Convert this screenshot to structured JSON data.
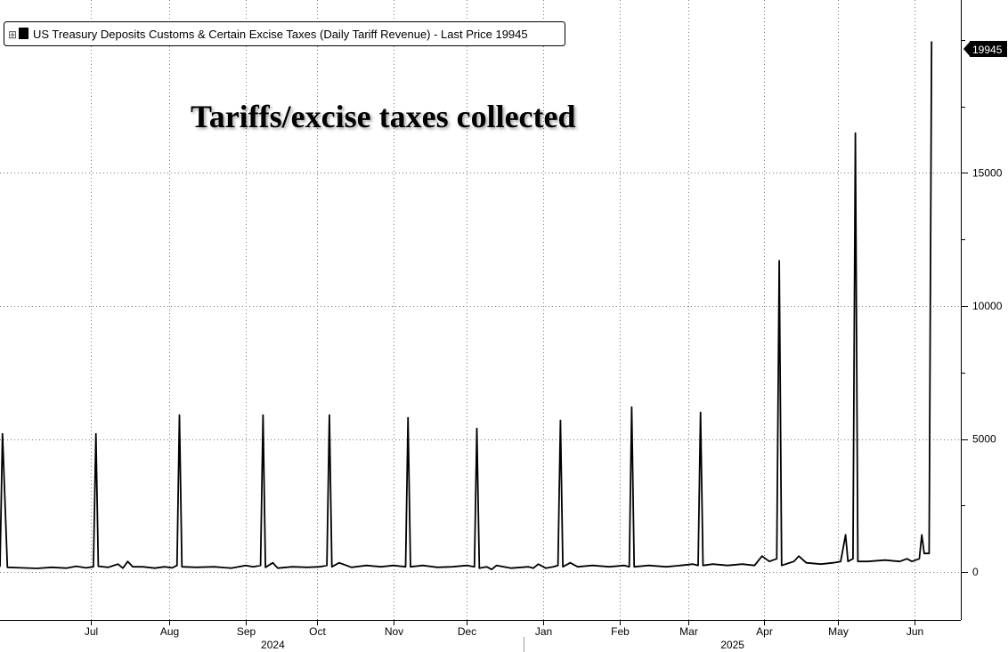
{
  "chart_data": {
    "type": "line",
    "title": "Tariffs/excise taxes collected",
    "legend": {
      "expand_glyph": "⊞",
      "text": "US Treasury Deposits Customs & Certain Excise Taxes (Daily Tariff Revenue) - Last Price 19945"
    },
    "last_value_label": "19945",
    "ylim": [
      -1800,
      21500
    ],
    "yticks": [
      0,
      5000,
      10000,
      15000
    ],
    "ytick_labels": [
      "0",
      "5000",
      "10000",
      "15000"
    ],
    "x_range": [
      "2024-06-01",
      "2025-06-20"
    ],
    "month_ticks": [
      {
        "label": "Jul",
        "date": "2024-07-08"
      },
      {
        "label": "Aug",
        "date": "2024-08-09"
      },
      {
        "label": "Sep",
        "date": "2024-09-09"
      },
      {
        "label": "Oct",
        "date": "2024-10-08"
      },
      {
        "label": "Nov",
        "date": "2024-11-08"
      },
      {
        "label": "Dec",
        "date": "2024-12-08"
      },
      {
        "label": "Jan",
        "date": "2025-01-08"
      },
      {
        "label": "Feb",
        "date": "2025-02-08"
      },
      {
        "label": "Mar",
        "date": "2025-03-08"
      },
      {
        "label": "Apr",
        "date": "2025-04-08"
      },
      {
        "label": "May",
        "date": "2025-05-08"
      },
      {
        "label": "Jun",
        "date": "2025-06-08"
      }
    ],
    "year_labels": [
      {
        "label": "2024",
        "date": "2024-09-20"
      },
      {
        "label": "2025",
        "date": "2025-03-26"
      }
    ],
    "grid": true,
    "legend_position": "top-left",
    "line_color": "#000000",
    "series": [
      {
        "points": [
          [
            "2024-06-01",
            200
          ],
          [
            "2024-06-02",
            5200
          ],
          [
            "2024-06-04",
            180
          ],
          [
            "2024-06-10",
            160
          ],
          [
            "2024-06-16",
            140
          ],
          [
            "2024-06-22",
            180
          ],
          [
            "2024-06-28",
            150
          ],
          [
            "2024-07-02",
            220
          ],
          [
            "2024-07-06",
            160
          ],
          [
            "2024-07-09",
            200
          ],
          [
            "2024-07-10",
            5200
          ],
          [
            "2024-07-11",
            220
          ],
          [
            "2024-07-15",
            180
          ],
          [
            "2024-07-19",
            300
          ],
          [
            "2024-07-21",
            150
          ],
          [
            "2024-07-23",
            400
          ],
          [
            "2024-07-25",
            200
          ],
          [
            "2024-07-29",
            200
          ],
          [
            "2024-08-03",
            150
          ],
          [
            "2024-08-07",
            200
          ],
          [
            "2024-08-10",
            160
          ],
          [
            "2024-08-12",
            250
          ],
          [
            "2024-08-13",
            5900
          ],
          [
            "2024-08-14",
            200
          ],
          [
            "2024-08-20",
            180
          ],
          [
            "2024-08-27",
            200
          ],
          [
            "2024-09-03",
            150
          ],
          [
            "2024-09-09",
            250
          ],
          [
            "2024-09-12",
            200
          ],
          [
            "2024-09-15",
            250
          ],
          [
            "2024-09-16",
            5900
          ],
          [
            "2024-09-17",
            180
          ],
          [
            "2024-09-20",
            350
          ],
          [
            "2024-09-22",
            150
          ],
          [
            "2024-09-28",
            200
          ],
          [
            "2024-10-04",
            180
          ],
          [
            "2024-10-09",
            200
          ],
          [
            "2024-10-12",
            250
          ],
          [
            "2024-10-13",
            5900
          ],
          [
            "2024-10-14",
            200
          ],
          [
            "2024-10-17",
            350
          ],
          [
            "2024-10-22",
            180
          ],
          [
            "2024-10-28",
            250
          ],
          [
            "2024-11-03",
            200
          ],
          [
            "2024-11-08",
            250
          ],
          [
            "2024-11-13",
            200
          ],
          [
            "2024-11-14",
            5800
          ],
          [
            "2024-11-15",
            200
          ],
          [
            "2024-11-20",
            250
          ],
          [
            "2024-11-26",
            180
          ],
          [
            "2024-12-02",
            200
          ],
          [
            "2024-12-08",
            250
          ],
          [
            "2024-12-11",
            200
          ],
          [
            "2024-12-12",
            5400
          ],
          [
            "2024-12-13",
            150
          ],
          [
            "2024-12-16",
            200
          ],
          [
            "2024-12-18",
            100
          ],
          [
            "2024-12-20",
            250
          ],
          [
            "2024-12-26",
            150
          ],
          [
            "2025-01-02",
            200
          ],
          [
            "2025-01-04",
            150
          ],
          [
            "2025-01-06",
            300
          ],
          [
            "2025-01-09",
            150
          ],
          [
            "2025-01-12",
            200
          ],
          [
            "2025-01-14",
            250
          ],
          [
            "2025-01-15",
            5700
          ],
          [
            "2025-01-16",
            200
          ],
          [
            "2025-01-19",
            350
          ],
          [
            "2025-01-22",
            200
          ],
          [
            "2025-01-28",
            250
          ],
          [
            "2025-02-04",
            200
          ],
          [
            "2025-02-10",
            250
          ],
          [
            "2025-02-12",
            200
          ],
          [
            "2025-02-13",
            6200
          ],
          [
            "2025-02-14",
            200
          ],
          [
            "2025-02-20",
            250
          ],
          [
            "2025-02-27",
            200
          ],
          [
            "2025-03-05",
            250
          ],
          [
            "2025-03-10",
            300
          ],
          [
            "2025-03-12",
            250
          ],
          [
            "2025-03-13",
            6000
          ],
          [
            "2025-03-14",
            250
          ],
          [
            "2025-03-18",
            300
          ],
          [
            "2025-03-24",
            250
          ],
          [
            "2025-03-30",
            300
          ],
          [
            "2025-04-04",
            250
          ],
          [
            "2025-04-07",
            600
          ],
          [
            "2025-04-10",
            400
          ],
          [
            "2025-04-13",
            500
          ],
          [
            "2025-04-14",
            11700
          ],
          [
            "2025-04-15",
            250
          ],
          [
            "2025-04-20",
            400
          ],
          [
            "2025-04-22",
            600
          ],
          [
            "2025-04-25",
            350
          ],
          [
            "2025-05-01",
            300
          ],
          [
            "2025-05-06",
            350
          ],
          [
            "2025-05-09",
            400
          ],
          [
            "2025-05-11",
            1400
          ],
          [
            "2025-05-12",
            400
          ],
          [
            "2025-05-14",
            500
          ],
          [
            "2025-05-15",
            16500
          ],
          [
            "2025-05-16",
            400
          ],
          [
            "2025-05-20",
            400
          ],
          [
            "2025-05-27",
            450
          ],
          [
            "2025-06-02",
            400
          ],
          [
            "2025-06-05",
            500
          ],
          [
            "2025-06-07",
            400
          ],
          [
            "2025-06-10",
            500
          ],
          [
            "2025-06-11",
            1400
          ],
          [
            "2025-06-12",
            700
          ],
          [
            "2025-06-14",
            700
          ],
          [
            "2025-06-15",
            19945
          ]
        ]
      }
    ]
  }
}
